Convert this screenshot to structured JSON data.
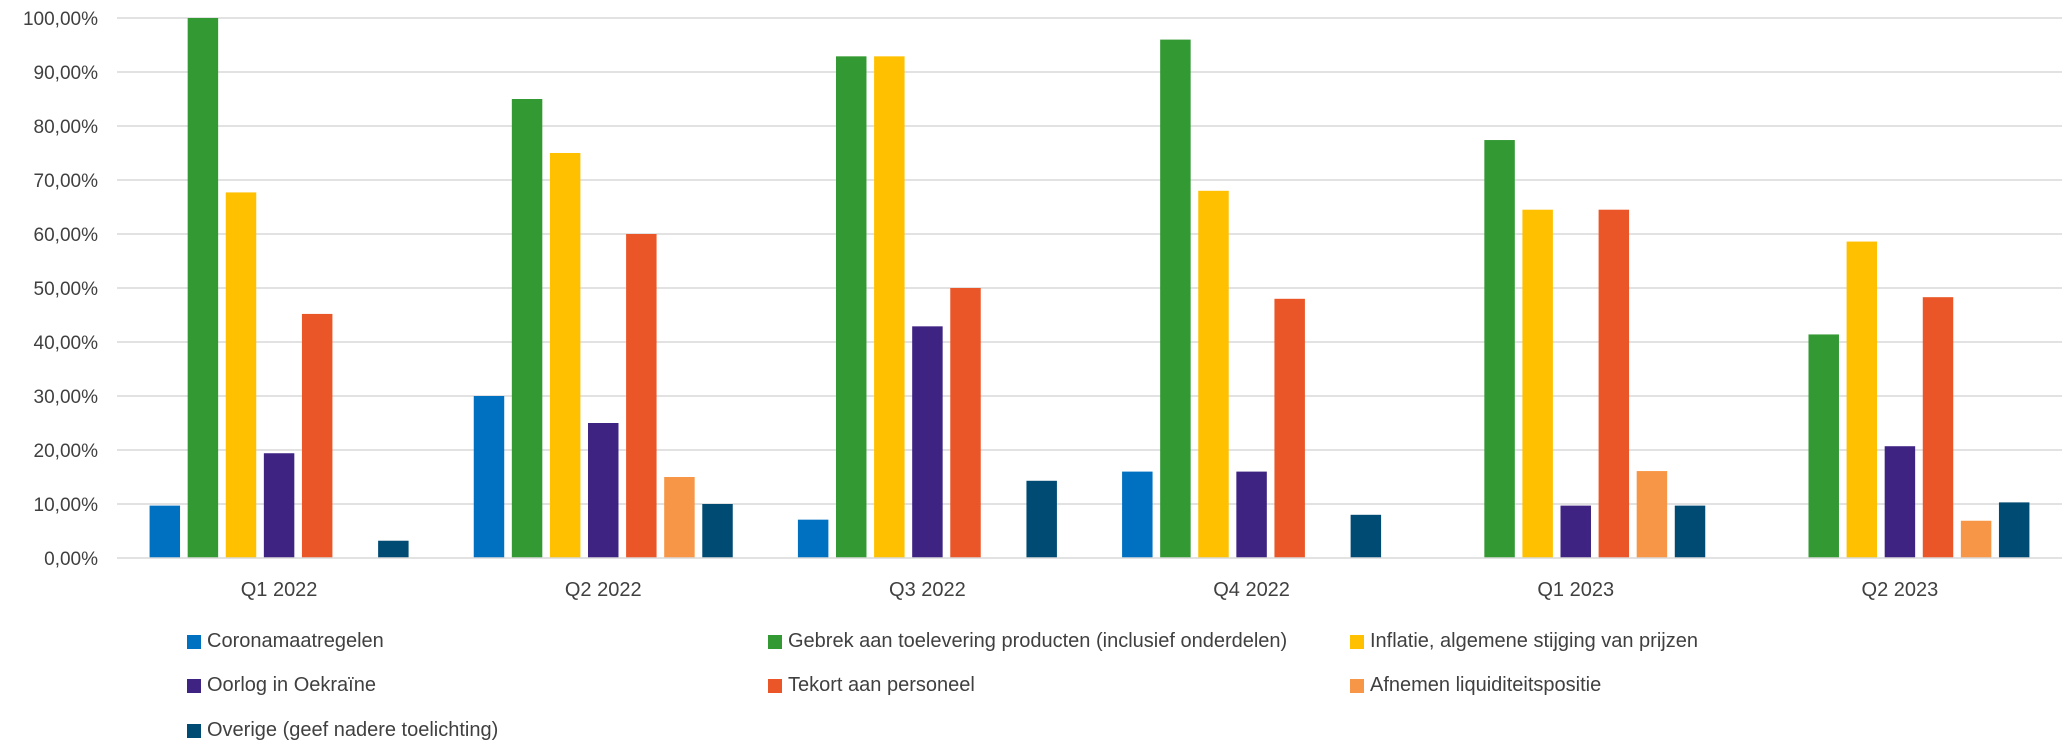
{
  "chart_data": {
    "type": "bar",
    "categories": [
      "Q1 2022",
      "Q2 2022",
      "Q3 2022",
      "Q4 2022",
      "Q1 2023",
      "Q2 2023"
    ],
    "yticks": [
      "0,00%",
      "10,00%",
      "20,00%",
      "30,00%",
      "40,00%",
      "50,00%",
      "60,00%",
      "70,00%",
      "80,00%",
      "90,00%",
      "100,00%"
    ],
    "ylim": [
      0,
      100
    ],
    "grid": true,
    "legend_position": "bottom",
    "series": [
      {
        "name": "Coronamaatregelen",
        "color": "#0070C0",
        "values": [
          9.7,
          30,
          7.1,
          16,
          0,
          0
        ]
      },
      {
        "name": "Gebrek aan toelevering producten (inclusief onderdelen)",
        "color": "#339933",
        "values": [
          100,
          85,
          92.9,
          96,
          77.4,
          41.4
        ]
      },
      {
        "name": "Inflatie, algemene stijging van prijzen",
        "color": "#FFC000",
        "values": [
          67.7,
          75,
          92.9,
          68,
          64.5,
          58.6
        ]
      },
      {
        "name": "Oorlog in Oekraïne",
        "color": "#3F2382",
        "values": [
          19.4,
          25,
          42.9,
          16,
          9.7,
          20.7
        ]
      },
      {
        "name": "Tekort aan personeel",
        "color": "#EB5628",
        "values": [
          45.2,
          60,
          50,
          48,
          64.5,
          48.3
        ]
      },
      {
        "name": "Afnemen liquiditeitspositie",
        "color": "#F79646",
        "values": [
          0,
          15,
          0,
          0,
          16.1,
          6.9
        ]
      },
      {
        "name": "Overige (geef nadere toelichting)",
        "color": "#004B73",
        "values": [
          3.2,
          10,
          14.3,
          8,
          9.7,
          10.3
        ]
      }
    ]
  }
}
